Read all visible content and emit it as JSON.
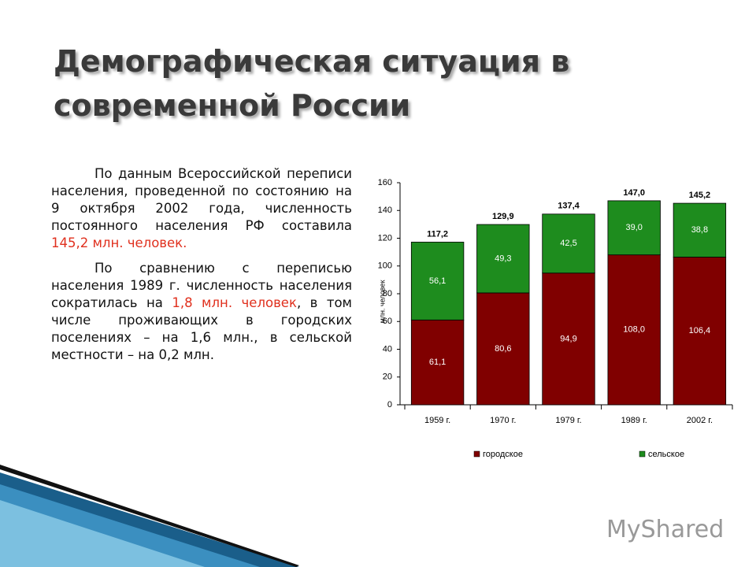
{
  "title": "Демографическая ситуация в современной России",
  "paragraphs": [
    [
      {
        "text": "По данным Всероссийской переписи населения, проведенной по состоянию на 9 октября 2002 года, численность постоянного населения РФ составила "
      },
      {
        "text": "145,2 млн. человек.",
        "color": "#e0301e"
      }
    ],
    [
      {
        "text": "По сравнению с переписью населения 1989 г. численность населения сократилась на "
      },
      {
        "text": "1,8 млн. человек",
        "color": "#e0301e"
      },
      {
        "text": ", в том числе проживающих в городских поселениях – на 1,6 млн., в сельской местности – на 0,2 млн."
      }
    ]
  ],
  "watermark": "MyShared",
  "chart_data": {
    "type": "stacked_bar",
    "categories": [
      "1959 г.",
      "1970 г.",
      "1979 г.",
      "1989 г.",
      "2002 г."
    ],
    "series": [
      {
        "name": "городское",
        "color": "#800000",
        "values": [
          61.1,
          80.6,
          94.9,
          108.0,
          106.4
        ],
        "value_labels": [
          "61,1",
          "80,6",
          "94,9",
          "108,0",
          "106,4"
        ]
      },
      {
        "name": "сельское",
        "color": "#1e8c1e",
        "values": [
          56.1,
          49.3,
          42.5,
          39.0,
          38.8
        ],
        "value_labels": [
          "56,1",
          "49,3",
          "42,5",
          "39,0",
          "38,8"
        ]
      }
    ],
    "totals": [
      117.2,
      129.9,
      137.4,
      147.0,
      145.2
    ],
    "total_labels": [
      "117,2",
      "129,9",
      "137,4",
      "147,0",
      "145,2"
    ],
    "y_label": "млн. человек",
    "ylim": [
      0,
      160
    ],
    "yticks": [
      0,
      20,
      40,
      60,
      80,
      100,
      120,
      140,
      160
    ],
    "legend": "bottom"
  }
}
